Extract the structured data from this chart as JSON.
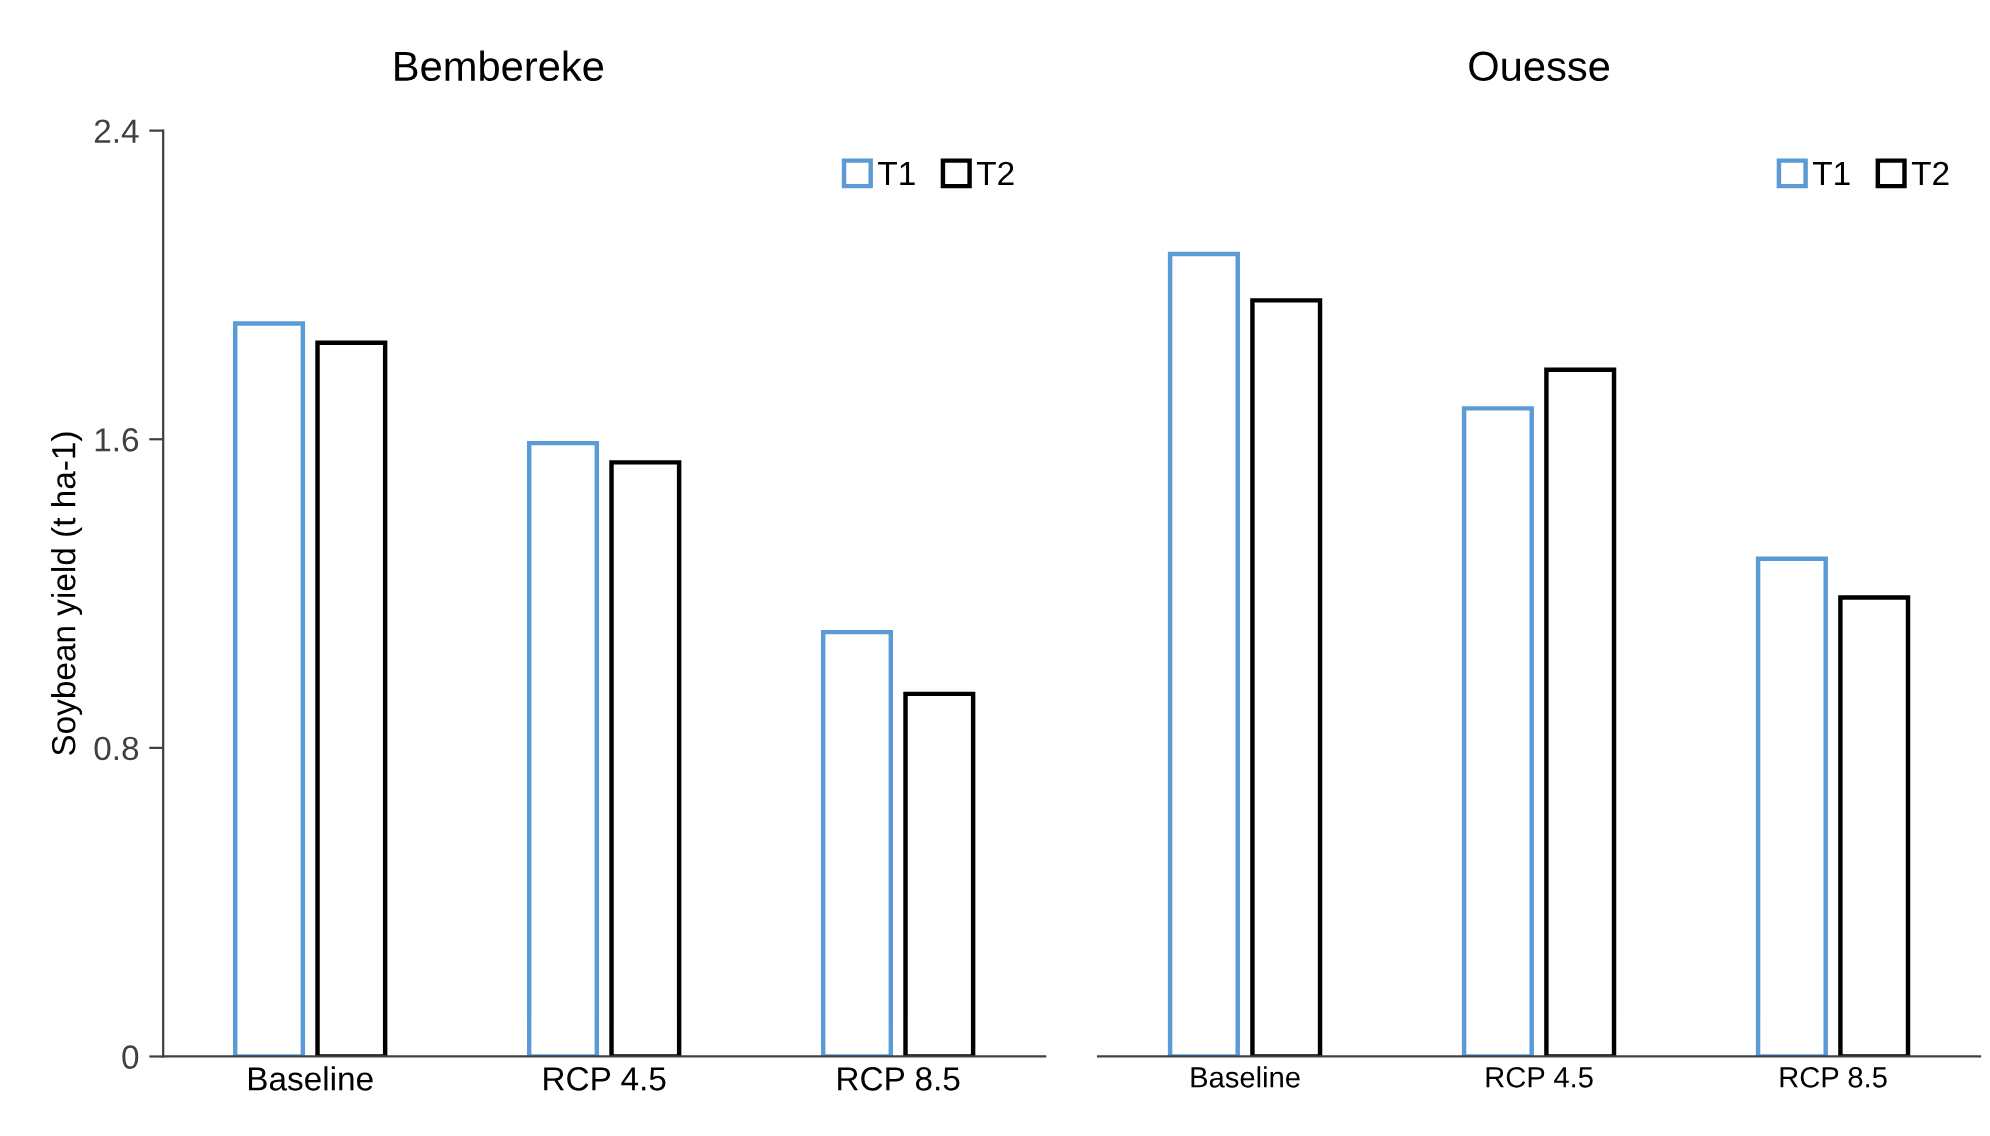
{
  "chart_data": [
    {
      "type": "bar",
      "title": "Bembereke",
      "ylabel": "Soybean yield (t ha-1)",
      "categories": [
        "Baseline",
        "RCP 4.5",
        "RCP 8.5"
      ],
      "series": [
        {
          "name": "T1",
          "color": "#5b9bd5",
          "values": [
            1.9,
            1.59,
            1.1
          ]
        },
        {
          "name": "T2",
          "color": "#000000",
          "values": [
            1.85,
            1.54,
            0.94
          ]
        }
      ],
      "ylim": [
        0,
        2.4
      ],
      "yticks": [
        0,
        0.8,
        1.6,
        2.4
      ],
      "grid": false,
      "legend": "top right"
    },
    {
      "type": "bar",
      "title": "Ouesse",
      "categories": [
        "Baseline",
        "RCP 4.5",
        "RCP 8.5"
      ],
      "series": [
        {
          "name": "T1",
          "color": "#5b9bd5",
          "values": [
            2.08,
            1.68,
            1.29
          ]
        },
        {
          "name": "T2",
          "color": "#000000",
          "values": [
            1.96,
            1.78,
            1.19
          ]
        }
      ],
      "ylim": [
        0,
        2.4
      ],
      "yticks": [
        0,
        0.8,
        1.6,
        2.4
      ],
      "tick_labels": "x",
      "grid": false,
      "legend": "top right"
    }
  ]
}
